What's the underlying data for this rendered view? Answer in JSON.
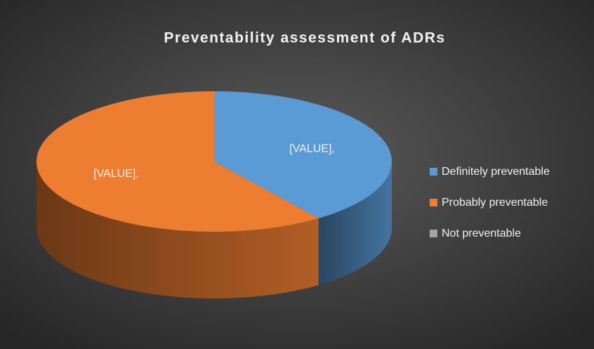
{
  "chart_data": {
    "type": "pie3d",
    "title": "Preventability assessment of ADRs",
    "categories": [
      "Definitely preventable",
      "Probably preventable",
      "Not preventable"
    ],
    "values": [
      40,
      60,
      0
    ],
    "value_labels": [
      "[VALUE],",
      "[VALUE],",
      null
    ],
    "colors": [
      "#5b9bd5",
      "#ed7d31",
      "#a5a5a5"
    ],
    "legend": "right"
  }
}
